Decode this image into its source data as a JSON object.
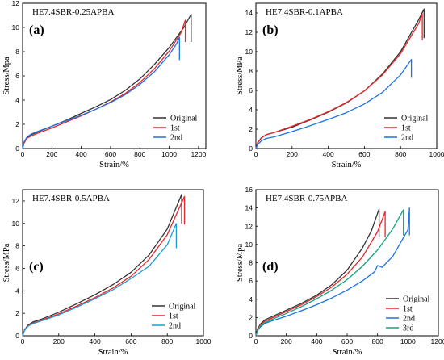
{
  "chart_data": [
    {
      "type": "line",
      "panel_label": "(a)",
      "title": "HE7.4SBR-0.25APBA",
      "xlabel": "Strain/%",
      "ylabel": "Stress/Mpa",
      "xlim": [
        0,
        1250
      ],
      "ylim": [
        0,
        12
      ],
      "xticks": [
        0,
        200,
        400,
        600,
        800,
        1000,
        1200
      ],
      "yticks": [
        0,
        2,
        4,
        6,
        8,
        10,
        12
      ],
      "legend": "bottom-right",
      "series": [
        {
          "name": "Original",
          "color": "#333333",
          "x": [
            0,
            10,
            30,
            60,
            100,
            200,
            300,
            400,
            500,
            600,
            700,
            800,
            900,
            1000,
            1100,
            1150,
            1150
          ],
          "y": [
            0,
            0.5,
            0.9,
            1.15,
            1.35,
            1.85,
            2.35,
            2.9,
            3.45,
            4.05,
            4.8,
            5.75,
            6.95,
            8.35,
            10.0,
            11.1,
            8.8
          ]
        },
        {
          "name": "1st",
          "color": "#e8262a",
          "x": [
            0,
            10,
            30,
            60,
            100,
            200,
            300,
            400,
            500,
            600,
            700,
            800,
            900,
            1000,
            1080,
            1110,
            1110
          ],
          "y": [
            0,
            0.45,
            0.85,
            1.05,
            1.25,
            1.7,
            2.2,
            2.7,
            3.25,
            3.85,
            4.55,
            5.45,
            6.6,
            8.05,
            9.55,
            10.6,
            8.8
          ]
        },
        {
          "name": "2nd",
          "color": "#1a73e8",
          "x": [
            0,
            10,
            30,
            60,
            100,
            200,
            300,
            400,
            500,
            600,
            700,
            800,
            900,
            1000,
            1050,
            1070,
            1070
          ],
          "y": [
            0,
            0.55,
            0.95,
            1.2,
            1.4,
            1.85,
            2.3,
            2.75,
            3.25,
            3.8,
            4.45,
            5.3,
            6.35,
            7.75,
            8.65,
            9.2,
            7.3
          ]
        }
      ]
    },
    {
      "type": "line",
      "panel_label": "(b)",
      "title": "HE7.4SBR-0.1APBA",
      "xlabel": "Strain/%",
      "ylabel": "Stress/MPa",
      "xlim": [
        0,
        1000
      ],
      "ylim": [
        0,
        15
      ],
      "xticks": [
        0,
        200,
        400,
        600,
        800,
        1000
      ],
      "yticks": [
        0,
        2,
        4,
        6,
        8,
        10,
        12,
        14
      ],
      "legend": "bottom-right",
      "series": [
        {
          "name": "Original",
          "color": "#333333",
          "x": [
            0,
            10,
            30,
            60,
            100,
            200,
            300,
            400,
            500,
            600,
            700,
            800,
            900,
            930,
            930
          ],
          "y": [
            0,
            0.6,
            1.1,
            1.45,
            1.65,
            2.2,
            2.95,
            3.75,
            4.7,
            5.95,
            7.7,
            10.0,
            13.3,
            14.4,
            11.4
          ]
        },
        {
          "name": "1st",
          "color": "#e8262a",
          "x": [
            0,
            10,
            30,
            60,
            100,
            200,
            300,
            400,
            500,
            600,
            700,
            800,
            900,
            920,
            920
          ],
          "y": [
            0,
            0.6,
            1.1,
            1.45,
            1.65,
            2.3,
            3.0,
            3.8,
            4.75,
            5.95,
            7.6,
            9.8,
            12.9,
            13.9,
            11.2
          ]
        },
        {
          "name": "2nd",
          "color": "#1a73e8",
          "x": [
            0,
            10,
            30,
            60,
            100,
            200,
            300,
            400,
            500,
            600,
            700,
            800,
            860,
            860
          ],
          "y": [
            0,
            0.4,
            0.8,
            1.05,
            1.2,
            1.75,
            2.35,
            3.0,
            3.7,
            4.6,
            5.8,
            7.6,
            9.2,
            7.3
          ]
        }
      ]
    },
    {
      "type": "line",
      "panel_label": "(c)",
      "title": "HE7.4SBR-0.5APBA",
      "xlabel": "Strain/%",
      "ylabel": "Stress/MPa",
      "xlim": [
        0,
        1000
      ],
      "ylim": [
        0,
        13
      ],
      "xticks": [
        0,
        200,
        400,
        600,
        800,
        1000
      ],
      "yticks": [
        0,
        2,
        4,
        6,
        8,
        10,
        12
      ],
      "legend": "bottom-right",
      "series": [
        {
          "name": "Original",
          "color": "#333333",
          "x": [
            0,
            10,
            30,
            60,
            100,
            200,
            300,
            400,
            500,
            600,
            700,
            800,
            880,
            880
          ],
          "y": [
            0,
            0.5,
            0.95,
            1.25,
            1.45,
            2.1,
            2.85,
            3.65,
            4.55,
            5.65,
            7.2,
            9.5,
            12.6,
            10.0
          ]
        },
        {
          "name": "1st",
          "color": "#e8262a",
          "x": [
            0,
            10,
            30,
            60,
            100,
            200,
            300,
            400,
            500,
            600,
            700,
            800,
            895,
            895
          ],
          "y": [
            0,
            0.45,
            0.9,
            1.15,
            1.35,
            1.95,
            2.65,
            3.4,
            4.25,
            5.3,
            6.8,
            9.0,
            12.4,
            9.9
          ]
        },
        {
          "name": "2nd",
          "color": "#1a9ed8",
          "x": [
            0,
            10,
            30,
            60,
            100,
            200,
            300,
            400,
            500,
            600,
            700,
            800,
            850,
            850
          ],
          "y": [
            0,
            0.45,
            0.85,
            1.1,
            1.3,
            1.85,
            2.55,
            3.3,
            4.1,
            5.1,
            6.2,
            8.1,
            10.0,
            7.8
          ]
        }
      ]
    },
    {
      "type": "line",
      "panel_label": "(d)",
      "title": "HE7.4SBR-0.75APBA",
      "xlabel": "Strain/%",
      "ylabel": "Stress/Mpa",
      "xlim": [
        0,
        1200
      ],
      "ylim": [
        0,
        16
      ],
      "xticks": [
        0,
        200,
        400,
        600,
        800,
        1000,
        1200
      ],
      "yticks": [
        0,
        2,
        4,
        6,
        8,
        10,
        12,
        14,
        16
      ],
      "legend": "bottom-right",
      "series": [
        {
          "name": "Original",
          "color": "#333333",
          "x": [
            0,
            10,
            30,
            60,
            100,
            200,
            300,
            400,
            500,
            600,
            700,
            760,
            810,
            810
          ],
          "y": [
            0,
            0.7,
            1.3,
            1.75,
            2.05,
            2.8,
            3.55,
            4.45,
            5.6,
            7.2,
            9.6,
            11.5,
            13.9,
            10.8
          ]
        },
        {
          "name": "1st",
          "color": "#e8262a",
          "x": [
            0,
            10,
            30,
            60,
            100,
            200,
            300,
            400,
            500,
            600,
            700,
            800,
            850,
            850
          ],
          "y": [
            0,
            0.65,
            1.2,
            1.6,
            1.9,
            2.65,
            3.4,
            4.3,
            5.35,
            6.75,
            8.6,
            11.4,
            13.6,
            10.8
          ]
        },
        {
          "name": "2nd",
          "color": "#1a73e8",
          "x": [
            0,
            10,
            30,
            60,
            100,
            200,
            300,
            400,
            500,
            600,
            700,
            780,
            800,
            830,
            900,
            1000,
            1010,
            1010
          ],
          "y": [
            0,
            0.55,
            1.0,
            1.35,
            1.6,
            2.15,
            2.75,
            3.4,
            4.15,
            5.0,
            6.0,
            7.0,
            7.7,
            7.5,
            8.7,
            11.6,
            14.0,
            11.0
          ]
        },
        {
          "name": "3rd",
          "color": "#10a37f",
          "x": [
            0,
            10,
            30,
            60,
            100,
            200,
            300,
            400,
            500,
            600,
            700,
            800,
            900,
            970,
            970
          ],
          "y": [
            0,
            0.55,
            1.1,
            1.45,
            1.75,
            2.45,
            3.2,
            4.05,
            5.0,
            6.15,
            7.6,
            9.4,
            11.7,
            13.8,
            11.0
          ]
        }
      ]
    }
  ]
}
